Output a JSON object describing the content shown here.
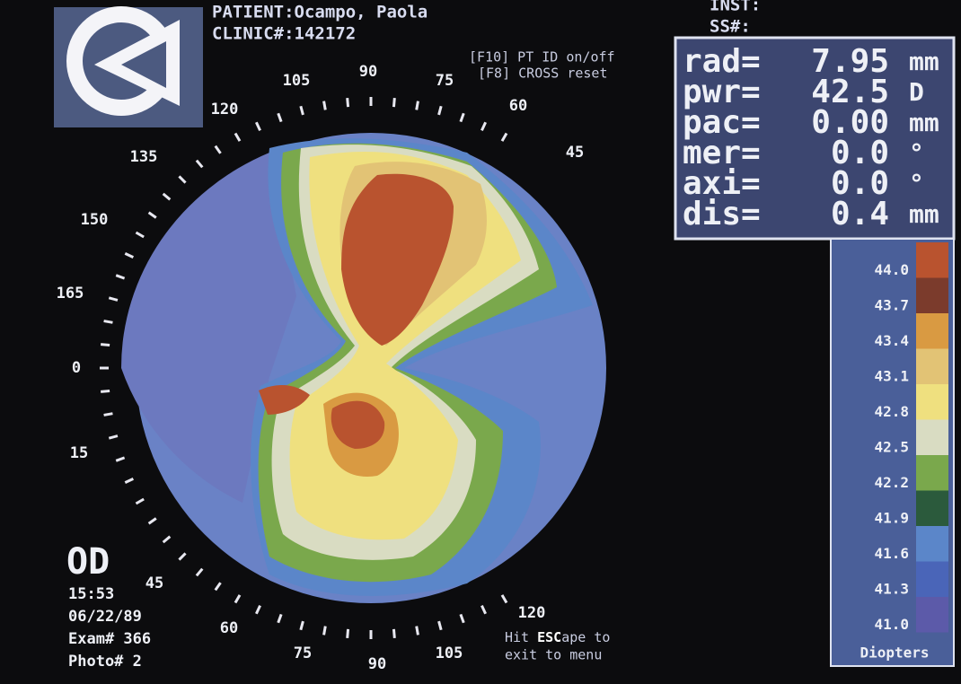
{
  "header": {
    "patient": "PATIENT:Ocampo, Paola",
    "clinic": "CLINIC#:142172",
    "inst": "INST:",
    "ss": "SS#:",
    "key_f10": "[F10] PT ID on/off",
    "key_f8": "[F8]  CROSS reset"
  },
  "measurements": [
    {
      "label": "rad=",
      "value": "7.95",
      "unit": "mm"
    },
    {
      "label": "pwr=",
      "value": "42.5",
      "unit": "D"
    },
    {
      "label": "pac=",
      "value": "0.00",
      "unit": "mm"
    },
    {
      "label": "mer=",
      "value": "0.0",
      "unit": "°"
    },
    {
      "label": "axi=",
      "value": "0.0",
      "unit": "°"
    },
    {
      "label": "dis=",
      "value": "0.4",
      "unit": "mm"
    }
  ],
  "legend": {
    "rows": [
      {
        "label": "44.0",
        "color": "#b9532f"
      },
      {
        "label": "43.7",
        "color": "#7b3b2c"
      },
      {
        "label": "43.4",
        "color": "#d99a42"
      },
      {
        "label": "43.1",
        "color": "#e2c375"
      },
      {
        "label": "42.8",
        "color": "#efe07f"
      },
      {
        "label": "42.5",
        "color": "#d9dcc2"
      },
      {
        "label": "42.2",
        "color": "#7aa84c"
      },
      {
        "label": "41.9",
        "color": "#2b5a3c"
      },
      {
        "label": "41.6",
        "color": "#5b86c9"
      },
      {
        "label": "41.3",
        "color": "#4a65b8"
      },
      {
        "label": "41.0",
        "color": "#5c5aa9"
      }
    ],
    "unit": "Diopters"
  },
  "angle_labels": [
    "105",
    "90",
    "75",
    "60",
    "45",
    "120",
    "135",
    "150",
    "165",
    "0",
    "15",
    "45",
    "60",
    "75",
    "90",
    "105",
    "120"
  ],
  "status": {
    "eye": "OD",
    "time": "15:53",
    "date": "06/22/89",
    "exam": "Exam# 366",
    "photo": "Photo# 2"
  },
  "hint": {
    "pre": "Hit ",
    "key": "ESC",
    "post": "ape to",
    "line2": "exit to menu"
  }
}
